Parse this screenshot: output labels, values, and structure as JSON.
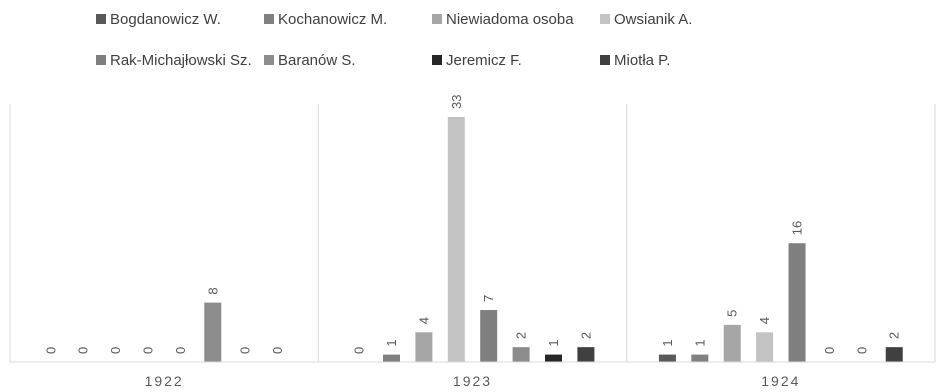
{
  "chart_data": {
    "type": "bar",
    "categories": [
      "1922",
      "1923",
      "1924"
    ],
    "series": [
      {
        "name": "Bogdanowicz W.",
        "values": [
          0,
          0,
          1
        ],
        "color": "#595959"
      },
      {
        "name": "Kochanowicz M.",
        "values": [
          0,
          1,
          1
        ],
        "color": "#808080"
      },
      {
        "name": "Niewiadoma osoba",
        "values": [
          0,
          4,
          5
        ],
        "color": "#a6a6a6"
      },
      {
        "name": "Owsianik A.",
        "values": [
          0,
          33,
          4
        ],
        "color": "#c3c3c3"
      },
      {
        "name": "Rak-Michajłowski Sz.",
        "values": [
          0,
          7,
          16
        ],
        "color": "#7f7f7f"
      },
      {
        "name": "Baranów S.",
        "values": [
          8,
          2,
          0
        ],
        "color": "#8c8c8c"
      },
      {
        "name": "Jeremicz F.",
        "values": [
          0,
          1,
          0
        ],
        "color": "#262626"
      },
      {
        "name": "Miotła P.",
        "values": [
          0,
          2,
          2
        ],
        "color": "#404040"
      }
    ],
    "ylim": [
      0,
      33
    ],
    "data_labels": true,
    "legend_position": "top",
    "grid": false,
    "category_separators": true
  }
}
